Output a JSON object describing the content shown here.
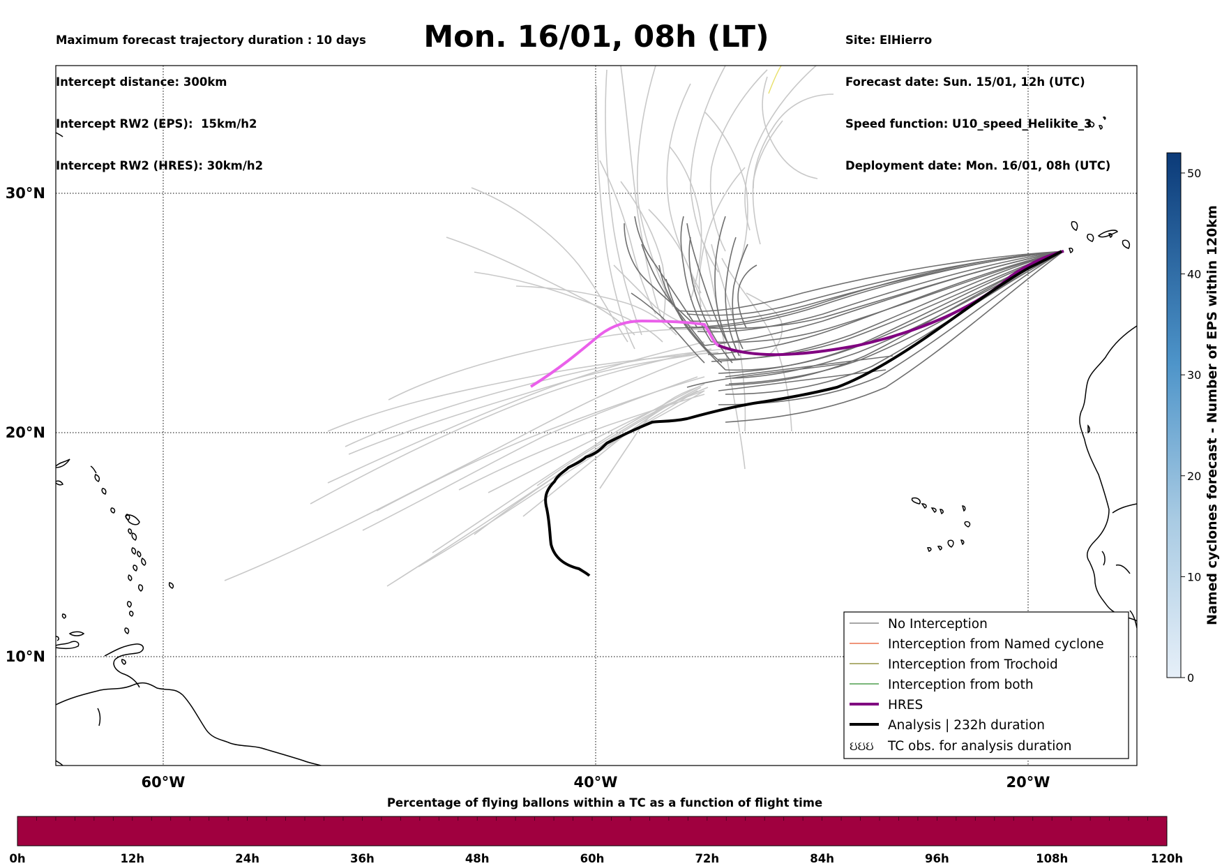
{
  "header_left": [
    "Maximum forecast trajectory duration : 10 days",
    "Intercept distance: 300km",
    "Intercept RW2 (EPS):  15km/h2",
    "Intercept RW2 (HRES): 30km/h2"
  ],
  "title": "Mon. 16/01, 08h (LT)",
  "header_right": [
    "Site: ElHierro",
    "Forecast date: Sun. 15/01, 12h (UTC)",
    "Speed function: U10_speed_Helikite_3",
    "Deployment date: Mon. 16/01, 08h (UTC)"
  ],
  "map": {
    "lat_labels": [
      {
        "value": 30,
        "label": "30°N"
      },
      {
        "value": 20,
        "label": "20°N"
      },
      {
        "value": 10,
        "label": "10°N"
      }
    ],
    "lon_labels": [
      {
        "value": -60,
        "label": "60°W"
      },
      {
        "value": -40,
        "label": "40°W"
      },
      {
        "value": -20,
        "label": "20°W"
      }
    ],
    "extent": {
      "lon": [
        -65,
        -15
      ],
      "lat": [
        5.5,
        34.8
      ]
    },
    "grid": true
  },
  "legend": {
    "items": [
      {
        "label": "No Interception",
        "color": "#707070",
        "style": "thin"
      },
      {
        "label": "Interception from Named cyclone",
        "color": "#e8562a",
        "style": "thin"
      },
      {
        "label": "Interception from Trochoid",
        "color": "#7f7f20",
        "style": "thin"
      },
      {
        "label": "Interception from both",
        "color": "#2a8a2a",
        "style": "thin"
      },
      {
        "label": "HRES",
        "color": "#800080",
        "style": "thick"
      },
      {
        "label": "Analysis | 232h duration",
        "color": "#000000",
        "style": "thick"
      },
      {
        "label": "TC obs. for analysis duration",
        "color": "#000000",
        "style": "symbol",
        "symbol": "ઇઇઇ"
      }
    ]
  },
  "colorbar_right": {
    "label": "Named cyclones forecast - Number of EPS within 120km",
    "ticks": [
      "0",
      "10",
      "20",
      "30",
      "40",
      "50"
    ],
    "min": 0,
    "max": 52,
    "color_low": "#e6eff8",
    "color_high": "#0b3a78"
  },
  "bottom_bar": {
    "label": "Percentage of flying ballons within a TC as a function of flight time",
    "ticks": [
      "0h",
      "12h",
      "24h",
      "36h",
      "48h",
      "60h",
      "72h",
      "84h",
      "96h",
      "108h",
      "120h"
    ],
    "fill_color": "#a0003f"
  }
}
